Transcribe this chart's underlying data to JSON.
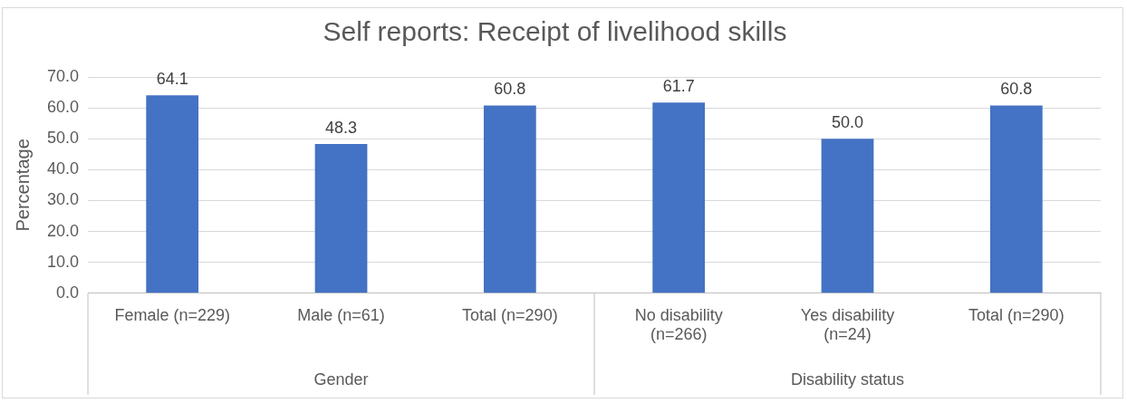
{
  "chart_data": {
    "type": "bar",
    "title": "Self reports: Receipt of livelihood skills",
    "ylabel": "Percentage",
    "categories": [
      "Female (n=229)",
      "Male (n=61)",
      "Total (n=290)",
      "No disability (n=266)",
      "Yes disability (n=24)",
      "Total (n=290)"
    ],
    "values": [
      64.1,
      48.3,
      60.8,
      61.7,
      50.0,
      60.8
    ],
    "color": "#4472c4",
    "value_labels": [
      "64.1",
      "48.3",
      "60.8",
      "61.7",
      "50.0",
      "60.8"
    ],
    "ylim": [
      0,
      70
    ],
    "yticks": [
      {
        "value": 0,
        "label": "0.0"
      },
      {
        "value": 10,
        "label": "10.0"
      },
      {
        "value": 20,
        "label": "20.0"
      },
      {
        "value": 30,
        "label": "30.0"
      },
      {
        "value": 40,
        "label": "40.0"
      },
      {
        "value": 50,
        "label": "50.0"
      },
      {
        "value": 60,
        "label": "60.0"
      },
      {
        "value": 70,
        "label": "70.0"
      }
    ],
    "annotations": [
      "Gender",
      "Disability status"
    ],
    "grid": "y",
    "legend": false
  }
}
